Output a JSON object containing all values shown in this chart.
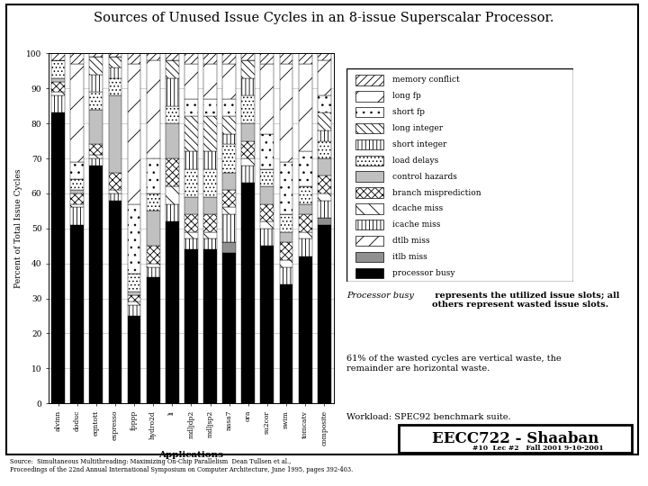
{
  "title": "Sources of Unused Issue Cycles in an 8-issue Superscalar Processor.",
  "xlabel": "Applications",
  "ylabel": "Percent of Total Issue Cycles",
  "categories": [
    "alvinn",
    "doduc",
    "eqntott",
    "espresso",
    "fpppp",
    "hydro2d",
    "li",
    "mdljdp2",
    "mdljsp2",
    "nasa7",
    "ora",
    "su2cor",
    "swim",
    "tomcatv",
    "composite"
  ],
  "ylim": [
    0,
    100
  ],
  "yticks": [
    0,
    10,
    20,
    30,
    40,
    50,
    60,
    70,
    80,
    90,
    100
  ],
  "legend_labels": [
    "memory conflict",
    "long fp",
    "short fp",
    "long integer",
    "short integer",
    "load delays",
    "control hazards",
    "branch misprediction",
    "dcache miss",
    "icache miss",
    "dtlb miss",
    "itlb miss",
    "processor busy"
  ],
  "note2": "61% of the wasted cycles are vertical waste, the\nremainder are horizontal waste.",
  "note3": "Workload: SPEC92 benchmark suite.",
  "source_text": "Source:  Simultaneous Multithreading: Maximizing On-Chip Parallelism  Dean Tullsen et al.,\nProceedings of the 22nd Annual International Symposium on Computer Architecture, June 1995, pages 392-403.",
  "footer_text": "#10  Lec #2   Fall 2001 9-10-2001",
  "bar_data": {
    "alvinn": [
      2,
      0,
      0,
      0,
      0,
      5,
      1,
      3,
      1,
      5,
      0,
      0,
      83
    ],
    "doduc": [
      3,
      28,
      5,
      0,
      0,
      3,
      1,
      3,
      1,
      5,
      0,
      0,
      51
    ],
    "eqntott": [
      1,
      0,
      0,
      5,
      5,
      5,
      10,
      3,
      1,
      2,
      0,
      0,
      68
    ],
    "espresso": [
      1,
      0,
      0,
      3,
      3,
      5,
      22,
      5,
      1,
      2,
      0,
      0,
      58
    ],
    "fpppp": [
      3,
      40,
      20,
      0,
      0,
      5,
      1,
      2,
      1,
      3,
      0,
      0,
      25
    ],
    "hydro2d": [
      2,
      28,
      10,
      0,
      0,
      5,
      10,
      5,
      1,
      3,
      0,
      0,
      36
    ],
    "li": [
      2,
      0,
      0,
      5,
      8,
      5,
      10,
      8,
      5,
      5,
      0,
      0,
      52
    ],
    "mdljdp2": [
      3,
      10,
      5,
      10,
      5,
      8,
      5,
      5,
      2,
      3,
      0,
      0,
      44
    ],
    "mdljsp2": [
      3,
      10,
      5,
      10,
      5,
      8,
      5,
      5,
      2,
      3,
      0,
      0,
      44
    ],
    "nasa7": [
      3,
      10,
      5,
      5,
      3,
      8,
      5,
      5,
      2,
      8,
      0,
      3,
      43
    ],
    "ora": [
      2,
      0,
      0,
      5,
      5,
      8,
      5,
      5,
      2,
      5,
      0,
      0,
      63
    ],
    "su2cor": [
      3,
      20,
      10,
      0,
      0,
      5,
      5,
      5,
      2,
      5,
      0,
      0,
      45
    ],
    "swim": [
      3,
      28,
      15,
      0,
      0,
      5,
      3,
      5,
      2,
      5,
      0,
      0,
      34
    ],
    "tomcatv": [
      3,
      25,
      10,
      0,
      0,
      5,
      3,
      5,
      2,
      5,
      0,
      0,
      42
    ],
    "composite": [
      2,
      10,
      5,
      5,
      3,
      5,
      5,
      5,
      2,
      5,
      0,
      2,
      51
    ]
  }
}
